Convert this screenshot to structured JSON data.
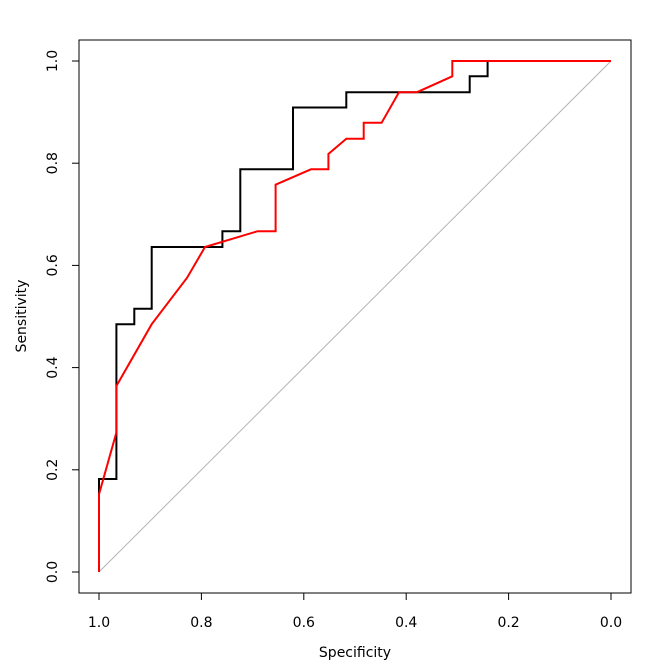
{
  "chart_data": {
    "type": "line",
    "title": "",
    "xlabel": "Specificity",
    "ylabel": "Sensitivity",
    "xlim": [
      1.0,
      0.0
    ],
    "ylim": [
      0.0,
      1.0
    ],
    "x_reversed": true,
    "x_ticks": [
      1.0,
      0.8,
      0.6,
      0.4,
      0.2,
      0.0
    ],
    "x_tick_labels": [
      "1.0",
      "0.8",
      "0.6",
      "0.4",
      "0.2",
      "0.0"
    ],
    "y_ticks": [
      0.0,
      0.2,
      0.4,
      0.6,
      0.8,
      1.0
    ],
    "y_tick_labels": [
      "0.0",
      "0.2",
      "0.4",
      "0.6",
      "0.8",
      "1.0"
    ],
    "grid": false,
    "legend": "none",
    "reference_line": {
      "from": [
        1.0,
        0.0
      ],
      "to": [
        0.0,
        1.0
      ],
      "color": "#b3b3b3"
    },
    "series": [
      {
        "color": "#000000",
        "points": [
          [
            1.0,
            0.0
          ],
          [
            1.0,
            0.182
          ],
          [
            0.966,
            0.182
          ],
          [
            0.966,
            0.485
          ],
          [
            0.931,
            0.485
          ],
          [
            0.931,
            0.515
          ],
          [
            0.897,
            0.515
          ],
          [
            0.897,
            0.636
          ],
          [
            0.759,
            0.636
          ],
          [
            0.759,
            0.667
          ],
          [
            0.724,
            0.667
          ],
          [
            0.724,
            0.788
          ],
          [
            0.621,
            0.788
          ],
          [
            0.621,
            0.909
          ],
          [
            0.517,
            0.909
          ],
          [
            0.517,
            0.939
          ],
          [
            0.276,
            0.939
          ],
          [
            0.276,
            0.97
          ],
          [
            0.241,
            0.97
          ],
          [
            0.241,
            1.0
          ],
          [
            0.0,
            1.0
          ]
        ]
      },
      {
        "color": "#ff0000",
        "points": [
          [
            1.0,
            0.0
          ],
          [
            1.0,
            0.152
          ],
          [
            0.966,
            0.273
          ],
          [
            0.966,
            0.364
          ],
          [
            0.897,
            0.485
          ],
          [
            0.828,
            0.576
          ],
          [
            0.793,
            0.636
          ],
          [
            0.69,
            0.667
          ],
          [
            0.655,
            0.667
          ],
          [
            0.655,
            0.758
          ],
          [
            0.586,
            0.788
          ],
          [
            0.552,
            0.788
          ],
          [
            0.552,
            0.818
          ],
          [
            0.517,
            0.848
          ],
          [
            0.483,
            0.848
          ],
          [
            0.483,
            0.879
          ],
          [
            0.448,
            0.879
          ],
          [
            0.414,
            0.939
          ],
          [
            0.379,
            0.939
          ],
          [
            0.31,
            0.97
          ],
          [
            0.31,
            1.0
          ],
          [
            0.0,
            1.0
          ]
        ]
      }
    ]
  }
}
